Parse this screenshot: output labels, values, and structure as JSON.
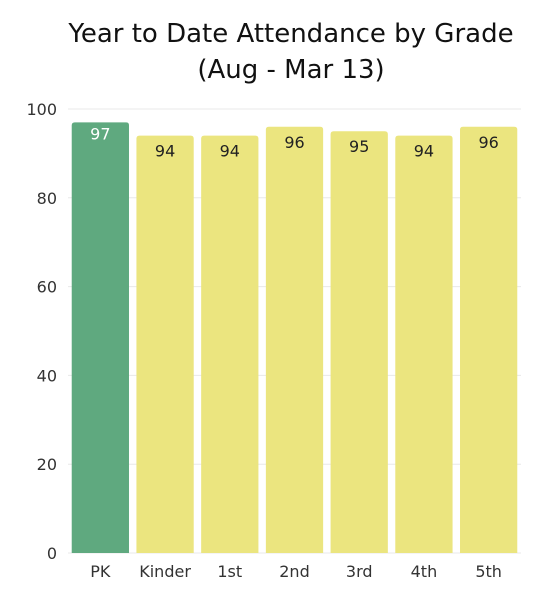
{
  "chart_data": {
    "type": "bar",
    "title": "Year to Date Attendance by Grade",
    "subtitle": "(Aug - Mar 13)",
    "categories": [
      "PK",
      "Kinder",
      "1st",
      "2nd",
      "3rd",
      "4th",
      "5th"
    ],
    "values": [
      97,
      94,
      94,
      96,
      95,
      94,
      96
    ],
    "ylim": [
      0,
      100
    ],
    "yticks": [
      0,
      20,
      40,
      60,
      80,
      100
    ],
    "grid": true,
    "colors": {
      "highlight": "#5fa97f",
      "default": "#ebe57f",
      "grid": "#e8e8e8"
    },
    "highlight_category": "PK",
    "data_label_colors": {
      "highlight": "#ffffff",
      "default": "#222222"
    }
  }
}
